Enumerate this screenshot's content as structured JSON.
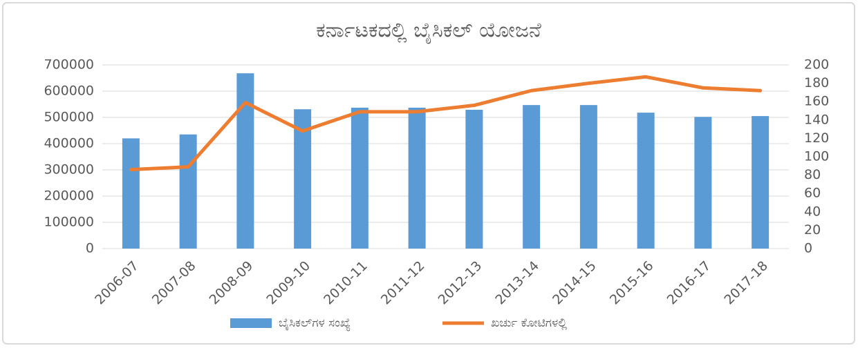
{
  "chart_data": {
    "type": "bar_line",
    "title": "ಕರ್ನಾಟಕದಲ್ಲಿ ಬೈಸಿಕಲ್ ಯೋಜನೆ",
    "categories": [
      "2006-07",
      "2007-08",
      "2008-09",
      "2009-10",
      "2010-11",
      "2011-12",
      "2012-13",
      "2013-14",
      "2014-15",
      "2015-16",
      "2016-17",
      "2017-18"
    ],
    "series": [
      {
        "name": "ಬೈಸಿಕಲ್‌ಗಳ ಸಂಖ್ಯೆ",
        "type": "bar",
        "color": "#5b9bd5",
        "axis": "y",
        "values": [
          420000,
          435000,
          668000,
          531000,
          537000,
          537000,
          529000,
          547000,
          547000,
          518000,
          502000,
          505000
        ]
      },
      {
        "name": "ಖರ್ಚು ಕೋಟಿಗಳಲ್ಲಿ",
        "type": "line",
        "color": "#ed7d31",
        "axis": "y2",
        "values": [
          86,
          89,
          159,
          128,
          149,
          149,
          156,
          172,
          180,
          187,
          175,
          172
        ]
      }
    ],
    "ylim": [
      0,
      700000
    ],
    "yticks": [
      0,
      100000,
      200000,
      300000,
      400000,
      500000,
      600000,
      700000
    ],
    "y2lim": [
      0,
      200
    ],
    "y2ticks": [
      0,
      20,
      40,
      60,
      80,
      100,
      120,
      140,
      160,
      180,
      200
    ],
    "grid": true,
    "legend": "bottom"
  }
}
